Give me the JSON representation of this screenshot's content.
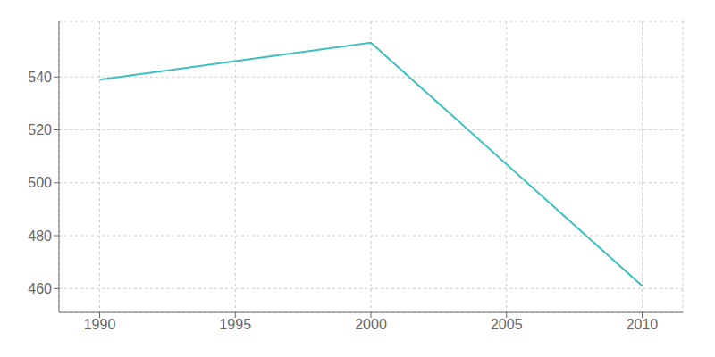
{
  "chart_data": {
    "type": "line",
    "x": [
      1990,
      1995,
      2000,
      2010
    ],
    "values": [
      539,
      546,
      553,
      461
    ],
    "color": "#3dbfbf",
    "xlim": [
      1988.5,
      2011.5
    ],
    "ylim": [
      451,
      561
    ],
    "xticks": [
      1990,
      1995,
      2000,
      2005,
      2010
    ],
    "yticks": [
      460,
      480,
      500,
      520,
      540
    ],
    "grid": true
  }
}
